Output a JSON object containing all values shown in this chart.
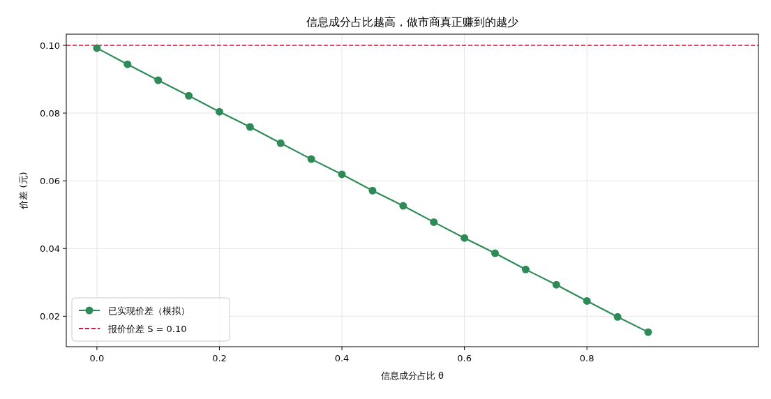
{
  "chart_data": {
    "type": "line",
    "title": "信息成分占比越高，做市商真正赚到的越少",
    "xlabel": "信息成分占比 θ",
    "ylabel": "价差 (元)",
    "x": [
      0,
      0.05,
      0.1,
      0.15,
      0.2,
      0.25,
      0.3,
      0.35,
      0.4,
      0.45,
      0.5,
      0.55,
      0.6,
      0.65,
      0.7,
      0.75,
      0.8,
      0.85,
      0.9
    ],
    "series": [
      {
        "name": "已实现价差（模拟）",
        "color": "#2e8b57",
        "values": [
          0.0992,
          0.0944,
          0.0897,
          0.0851,
          0.0804,
          0.0759,
          0.0711,
          0.0664,
          0.0619,
          0.0571,
          0.0526,
          0.0478,
          0.0431,
          0.0386,
          0.0338,
          0.0293,
          0.0245,
          0.0198,
          0.0153
        ]
      }
    ],
    "ref_lines": [
      {
        "axis": "y",
        "value": 0.1,
        "label": "报价价差 S = 0.10",
        "color": "#dc143c",
        "line_style": "dashed"
      }
    ],
    "xlim": [
      -0.05,
      1.08
    ],
    "ylim": [
      0.011,
      0.1033
    ],
    "xticks": [
      {
        "value": 0,
        "label": "0.0"
      },
      {
        "value": 0.2,
        "label": "0.2"
      },
      {
        "value": 0.4,
        "label": "0.4"
      },
      {
        "value": 0.6,
        "label": "0.6"
      },
      {
        "value": 0.8,
        "label": "0.8"
      }
    ],
    "yticks": [
      {
        "value": 0.02,
        "label": "0.02"
      },
      {
        "value": 0.04,
        "label": "0.04"
      },
      {
        "value": 0.06,
        "label": "0.06"
      },
      {
        "value": 0.08,
        "label": "0.08"
      },
      {
        "value": 0.1,
        "label": "0.10"
      }
    ],
    "grid": true,
    "legend": "bottom left",
    "marker": "circle",
    "line_style": "solid"
  }
}
